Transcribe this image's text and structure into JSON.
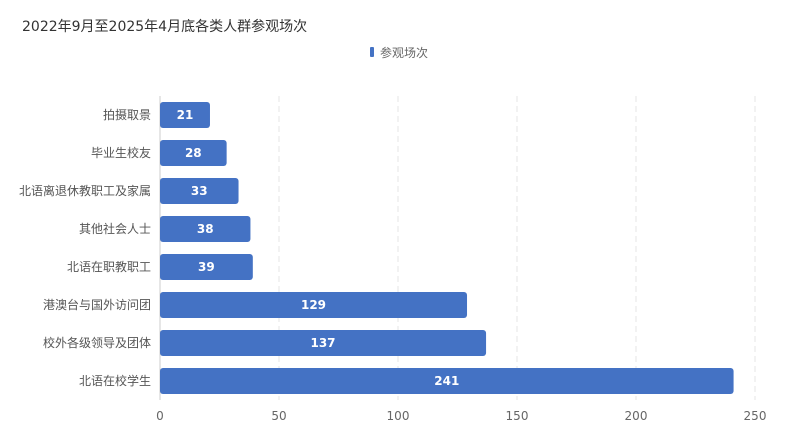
{
  "chart_data": {
    "type": "bar",
    "orientation": "horizontal",
    "title": "2022年9月至2025年4月底各类人群参观场次",
    "categories": [
      "拍摄取景",
      "毕业生校友",
      "北语离退休教职工及家属",
      "其他社会人士",
      "北语在职教职工",
      "港澳台与国外访问团",
      "校外各级领导及团体",
      "北语在校学生"
    ],
    "series": [
      {
        "name": "参观场次",
        "values": [
          21,
          28,
          33,
          38,
          39,
          129,
          137,
          241
        ],
        "color": "#4472c4"
      }
    ],
    "xlim": [
      0,
      250
    ],
    "xticks": [
      0,
      50,
      100,
      150,
      200,
      250
    ],
    "grid": true,
    "legend_position": "top-center",
    "data_labels": true
  }
}
